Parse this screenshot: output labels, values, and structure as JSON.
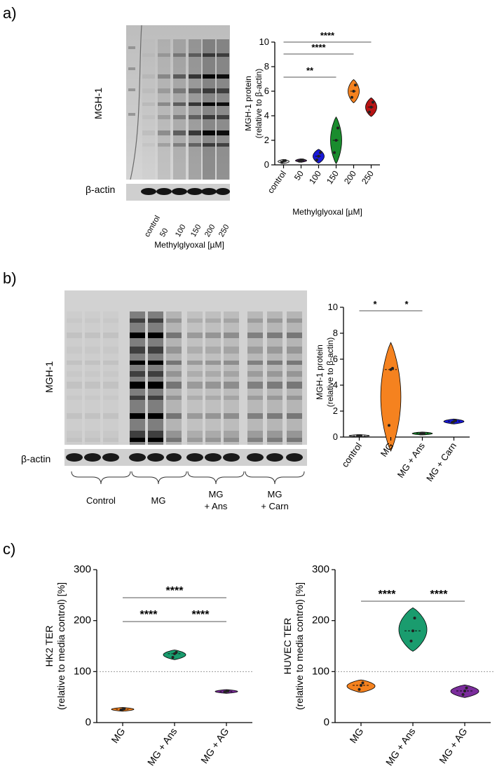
{
  "panel_a": {
    "letter": "a)",
    "blot": {
      "top_label": "MGH-1",
      "bottom_label": "β-actin",
      "lanes": [
        "control",
        "50",
        "100",
        "150",
        "200",
        "250"
      ],
      "xlabel": "Methylglyoxal [µM]"
    }
  },
  "panel_b": {
    "letter": "b)",
    "blot": {
      "top_label": "MGH-1",
      "bottom_label": "β-actin",
      "groups": [
        "Control",
        "MG",
        "MG\n+ Ans",
        "MG\n+ Carn"
      ],
      "group_lines": [
        [
          "Control"
        ],
        [
          "MG"
        ],
        [
          "MG",
          "+ Ans"
        ],
        [
          "MG",
          "+ Carn"
        ]
      ]
    }
  },
  "panel_c": {
    "letter": "c)"
  },
  "chart_data": [
    {
      "type": "violin",
      "panel": "a",
      "categories": [
        "control",
        "50",
        "100",
        "150",
        "200",
        "250"
      ],
      "values": [
        0.3,
        0.35,
        0.7,
        2.0,
        6.0,
        4.7
      ],
      "points": [
        [
          0.2,
          0.3,
          0.35
        ],
        [
          0.3,
          0.35,
          0.4
        ],
        [
          0.4,
          0.7,
          1.0
        ],
        [
          1.0,
          2.0,
          3.0
        ],
        [
          5.5,
          6.0,
          6.5
        ],
        [
          4.3,
          4.7,
          5.1
        ]
      ],
      "colors": [
        "#d9d9d9",
        "#4a235a",
        "#1a1ad9",
        "#1a8c2e",
        "#f5821f",
        "#b81414"
      ],
      "ylabel": "MGH-1 protein\n(relative to β-actin)",
      "ylabel_lines": [
        "MGH-1 protein",
        "(relative to β-actin)"
      ],
      "xlabel": "Methylglyoxal [µM]",
      "ylim": [
        0,
        10
      ],
      "yticks": [
        0,
        2,
        4,
        6,
        8,
        10
      ],
      "significance": [
        {
          "from": "control",
          "to": "150",
          "label": "**"
        },
        {
          "from": "control",
          "to": "200",
          "label": "****"
        },
        {
          "from": "control",
          "to": "250",
          "label": "****"
        }
      ]
    },
    {
      "type": "violin",
      "panel": "b",
      "categories": [
        "control",
        "MG",
        "MG + Ans",
        "MG + Carn"
      ],
      "values": [
        0.1,
        5.2,
        0.3,
        1.2
      ],
      "points": [
        [
          0.1,
          0.1,
          0.1
        ],
        [
          0.9,
          5.2,
          5.3
        ],
        [
          0.25,
          0.3,
          0.3
        ],
        [
          1.1,
          1.2,
          1.3
        ]
      ],
      "colors": [
        "#d9d9d9",
        "#f5821f",
        "#1a8c2e",
        "#1a1ad9"
      ],
      "ylabel": "MGH-1 protein\n(relative to β-actin)",
      "ylabel_lines": [
        "MGH-1 protein",
        "(relative to β-actin)"
      ],
      "ylim": [
        0,
        10
      ],
      "yticks": [
        0,
        2,
        4,
        6,
        8,
        10
      ],
      "significance": [
        {
          "from": "control",
          "to": "MG",
          "label": "*"
        },
        {
          "from": "MG",
          "to": "MG + Ans",
          "label": "*"
        }
      ]
    },
    {
      "type": "violin",
      "panel": "c-left",
      "categories": [
        "MG",
        "MG + Ans",
        "MG + AG"
      ],
      "values": [
        26,
        135,
        61
      ],
      "points": [
        [
          25,
          26,
          27
        ],
        [
          128,
          135,
          138
        ],
        [
          60,
          61,
          62
        ]
      ],
      "colors": [
        "#f5821f",
        "#1a9c6e",
        "#7b2d9c"
      ],
      "ylabel": "HK2 TER\n(relative to media control) [%]",
      "ylabel_lines": [
        "HK2 TER",
        "(relative to media control) [%]"
      ],
      "ylim": [
        0,
        300
      ],
      "yticks": [
        0,
        100,
        200,
        300
      ],
      "reference_line": 100,
      "significance": [
        {
          "from": "MG",
          "to": "MG + Ans",
          "label": "****"
        },
        {
          "from": "MG + Ans",
          "to": "MG + AG",
          "label": "****"
        },
        {
          "from": "MG",
          "to": "MG + AG",
          "label": "****"
        }
      ]
    },
    {
      "type": "violin",
      "panel": "c-right",
      "categories": [
        "MG",
        "MG + Ans",
        "MG + AG"
      ],
      "values": [
        73,
        180,
        62
      ],
      "points": [
        [
          65,
          73,
          78
        ],
        [
          160,
          180,
          205
        ],
        [
          55,
          62,
          68
        ]
      ],
      "colors": [
        "#f5821f",
        "#1a9c6e",
        "#7b2d9c"
      ],
      "ylabel": "HUVEC TER\n(relative to media control) [%]",
      "ylabel_lines": [
        "HUVEC TER",
        "(relative to media control) [%]"
      ],
      "ylim": [
        0,
        300
      ],
      "yticks": [
        0,
        100,
        200,
        300
      ],
      "reference_line": 100,
      "significance": [
        {
          "from": "MG",
          "to": "MG + Ans",
          "label": "****"
        },
        {
          "from": "MG + Ans",
          "to": "MG + AG",
          "label": "****"
        }
      ]
    }
  ]
}
